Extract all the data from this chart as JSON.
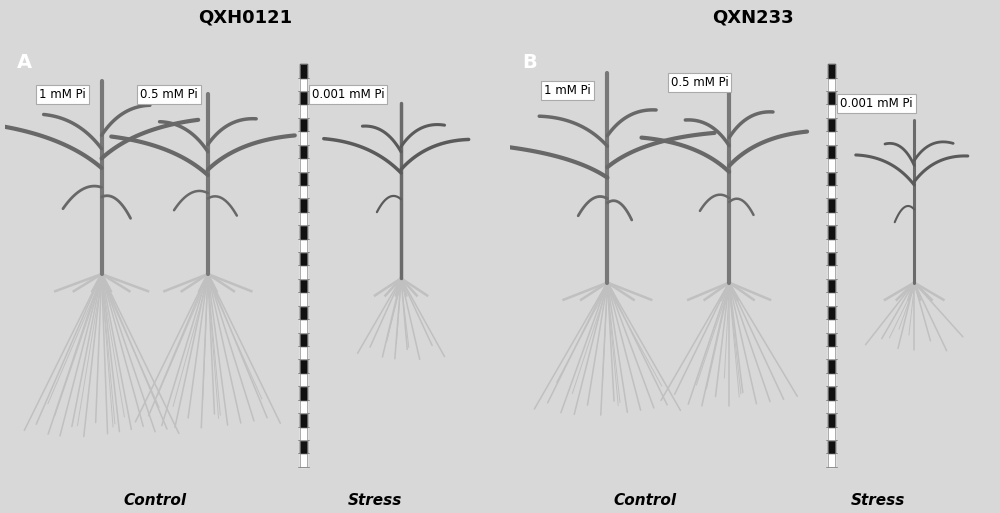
{
  "title_left": "QXH0121",
  "title_right": "QXN233",
  "panel_A_label": "A",
  "panel_B_label": "B",
  "label_1mM": "1 mM Pi",
  "label_05mM": "0.5 mM Pi",
  "label_0001mM": "0.001 mM Pi",
  "bottom_left1": "Control",
  "bottom_left2": "Stress",
  "bottom_right1": "Control",
  "bottom_right2": "Stress",
  "bg_color": "#0a0a0a",
  "fig_bg_color": "#d8d8d8",
  "title_color": "#000000",
  "bottom_label_color": "#000000",
  "panel_label_color": "#ffffff",
  "fig_width": 10.0,
  "fig_height": 5.13,
  "ruler_color": "#e0e0e0",
  "leaf_color": "#686868",
  "root_color": "#c0c0c0",
  "stem_color": "#787878"
}
